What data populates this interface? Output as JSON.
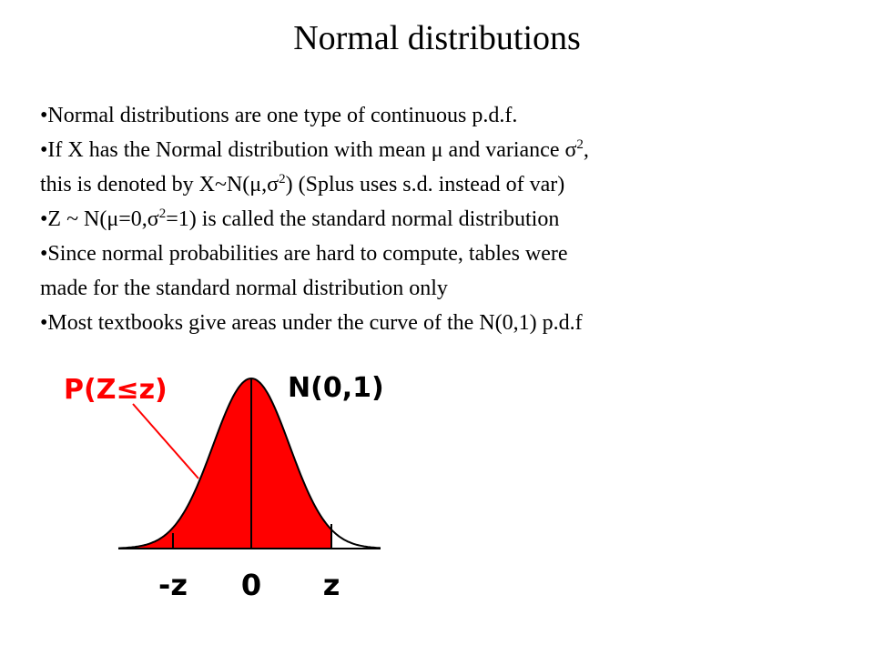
{
  "slide": {
    "title": "Normal distributions",
    "bullets": {
      "b1": {
        "dot": "•",
        "text": "Normal distributions  are one type of continuous p.d.f."
      },
      "b2": {
        "dot": "•",
        "t1": "If X has the Normal distribution with mean ",
        "mu": "μ",
        "t2": " and variance  ",
        "sigma": "σ",
        "sup": "2",
        "t3": ",",
        "t4": "this is denoted by X~N(",
        "mu2": "μ",
        "comma": ",",
        "sigma2": "σ",
        "sup2": "2",
        "t5": ")  (Splus uses s.d. instead of var)"
      },
      "b3": {
        "dot": "•",
        "t1": "Z ~ N(",
        "mu": "μ",
        "t2": "=0,",
        "sigma": "σ",
        "sup": "2",
        "t3": "=1)  is called the standard normal distribution"
      },
      "b4": {
        "dot": "•",
        "line1": "Since normal probabilities are hard to compute,  tables were",
        "line2": "made for the standard normal distribution only"
      },
      "b5": {
        "dot": "•",
        "text": "Most textbooks give areas under the curve of the N(0,1) p.d.f"
      }
    }
  },
  "figure": {
    "prob_label": "P(Z≤z)",
    "dist_label": "N(0,1)",
    "tick_neg": "-z",
    "tick_zero": "0",
    "tick_pos": "z",
    "shade_color": "#ff0000"
  }
}
